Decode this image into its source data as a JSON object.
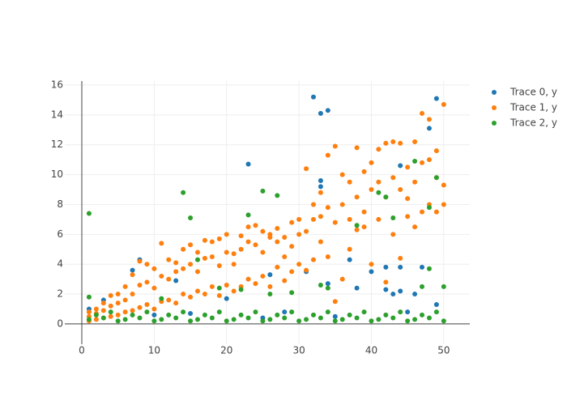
{
  "chart_data": {
    "type": "scatter",
    "xlim": [
      -2.35,
      53.6
    ],
    "ylim": [
      -1.36,
      16.27
    ],
    "xticks": [
      0,
      10,
      20,
      30,
      40,
      50
    ],
    "yticks": [
      0,
      2,
      4,
      6,
      8,
      10,
      12,
      14,
      16
    ],
    "grid": true,
    "legend": "top-right",
    "series": [
      {
        "name": "Trace 0, y",
        "color": "#1f77b4",
        "x": [
          1,
          3,
          7,
          8,
          13,
          23,
          32,
          33,
          34,
          33,
          33,
          37,
          38,
          40,
          42,
          42,
          43,
          44,
          44,
          44,
          46,
          47,
          48,
          49,
          49,
          31,
          34,
          26,
          20,
          25,
          28,
          35,
          45,
          10,
          15
        ],
        "values": [
          1,
          1.6,
          3.6,
          4.3,
          2.9,
          10.7,
          15.2,
          14.1,
          14.3,
          9.6,
          9.2,
          4.3,
          2.4,
          3.5,
          3.8,
          2.3,
          2,
          3.8,
          2.2,
          10.6,
          2,
          3.8,
          13.1,
          15.1,
          1.3,
          3.5,
          2.7,
          3.3,
          1.7,
          0.4,
          0.8,
          0.5,
          0.8,
          0.6,
          0.7
        ]
      },
      {
        "name": "Trace 1, y",
        "color": "#ff7f0e",
        "x": [
          1,
          1,
          1,
          2,
          2,
          2,
          3,
          3,
          3,
          4,
          4,
          4,
          5,
          5,
          5,
          6,
          6,
          6,
          7,
          7,
          7,
          8,
          8,
          8,
          9,
          9,
          9,
          10,
          10,
          10,
          11,
          11,
          11,
          12,
          12,
          12,
          13,
          13,
          13,
          14,
          14,
          14,
          15,
          15,
          15,
          16,
          16,
          16,
          17,
          17,
          17,
          18,
          18,
          18,
          19,
          19,
          19,
          20,
          20,
          20,
          21,
          21,
          21,
          22,
          22,
          22,
          23,
          23,
          23,
          24,
          24,
          24,
          25,
          25,
          25,
          26,
          26,
          26,
          27,
          27,
          27,
          28,
          28,
          28,
          29,
          29,
          29,
          30,
          30,
          30,
          31,
          31,
          31,
          32,
          32,
          32,
          33,
          33,
          33,
          34,
          34,
          34,
          35,
          35,
          35,
          36,
          36,
          36,
          37,
          37,
          37,
          38,
          38,
          38,
          39,
          39,
          39,
          40,
          40,
          40,
          41,
          41,
          41,
          42,
          42,
          42,
          43,
          43,
          43,
          44,
          44,
          44,
          45,
          45,
          45,
          46,
          46,
          46,
          47,
          47,
          47,
          48,
          48,
          48,
          49,
          49,
          49,
          50,
          50,
          50
        ],
        "values": [
          0.2,
          0.5,
          0.8,
          0.3,
          0.7,
          1.0,
          0.4,
          0.9,
          1.4,
          0.5,
          1.2,
          1.9,
          0.6,
          1.4,
          2.0,
          0.8,
          1.6,
          2.5,
          0.9,
          2.0,
          3.3,
          1.1,
          2.6,
          4.2,
          1.3,
          2.8,
          4.0,
          1.0,
          2.4,
          3.7,
          1.5,
          3.2,
          5.4,
          1.6,
          3.0,
          4.3,
          1.4,
          3.5,
          4.1,
          2.0,
          3.7,
          5.0,
          1.8,
          4.0,
          5.3,
          2.2,
          3.5,
          4.8,
          2.0,
          4.4,
          5.6,
          2.5,
          4.5,
          5.5,
          1.9,
          3.9,
          5.7,
          2.6,
          4.8,
          6.0,
          2.2,
          4.0,
          4.7,
          2.5,
          5.0,
          5.9,
          3.0,
          5.5,
          6.5,
          2.7,
          5.3,
          6.6,
          3.2,
          4.8,
          6.2,
          2.5,
          5.8,
          6.0,
          3.8,
          5.5,
          6.4,
          2.9,
          4.5,
          5.8,
          3.5,
          5.2,
          6.8,
          4.0,
          6.0,
          7.0,
          3.6,
          6.2,
          10.4,
          4.3,
          7.0,
          8.0,
          5.5,
          7.2,
          8.8,
          4.5,
          7.8,
          11.3,
          1.5,
          6.8,
          11.9,
          3.0,
          8.0,
          10.0,
          5.0,
          7.0,
          9.5,
          6.3,
          8.5,
          11.8,
          6.5,
          7.5,
          10.2,
          4.0,
          9.0,
          10.8,
          7.0,
          9.5,
          11.7,
          2.8,
          8.5,
          12.1,
          6.0,
          9.8,
          12.2,
          4.4,
          9.0,
          12.1,
          7.2,
          8.4,
          10.5,
          6.5,
          9.5,
          12.2,
          7.5,
          10.8,
          14.1,
          8.0,
          11.0,
          13.7,
          7.5,
          9.8,
          11.6,
          8.0,
          9.3,
          14.7
        ]
      },
      {
        "name": "Trace 2, y",
        "color": "#2ca02c",
        "x": [
          1,
          2,
          3,
          4,
          5,
          6,
          7,
          8,
          9,
          10,
          11,
          12,
          13,
          14,
          15,
          16,
          17,
          18,
          19,
          20,
          21,
          22,
          23,
          24,
          25,
          26,
          27,
          28,
          29,
          30,
          31,
          32,
          33,
          34,
          35,
          36,
          37,
          38,
          39,
          40,
          41,
          42,
          43,
          44,
          45,
          46,
          47,
          48,
          49,
          50,
          1,
          1,
          14,
          15,
          16,
          23,
          25,
          27,
          22,
          26,
          29,
          33,
          34,
          38,
          41,
          42,
          43,
          46,
          48,
          49,
          50,
          47,
          48,
          11,
          19
        ],
        "values": [
          0.3,
          0.6,
          0.4,
          0.8,
          0.2,
          0.3,
          0.6,
          0.4,
          0.8,
          0.2,
          0.3,
          0.6,
          0.4,
          0.8,
          0.2,
          0.3,
          0.6,
          0.4,
          0.8,
          0.2,
          0.3,
          0.6,
          0.4,
          0.8,
          0.2,
          0.3,
          0.6,
          0.4,
          0.8,
          0.2,
          0.3,
          0.6,
          0.4,
          0.8,
          0.2,
          0.3,
          0.6,
          0.4,
          0.8,
          0.2,
          0.3,
          0.6,
          0.4,
          0.8,
          0.2,
          0.3,
          0.6,
          0.4,
          0.8,
          0.2,
          7.4,
          1.8,
          8.8,
          7.1,
          4.3,
          7.3,
          8.9,
          8.6,
          2.3,
          2.0,
          2.1,
          2.6,
          2.4,
          6.6,
          8.8,
          8.5,
          7.1,
          10.9,
          7.8,
          9.8,
          2.5,
          2.5,
          3.7,
          1.7,
          2.4
        ]
      }
    ]
  }
}
